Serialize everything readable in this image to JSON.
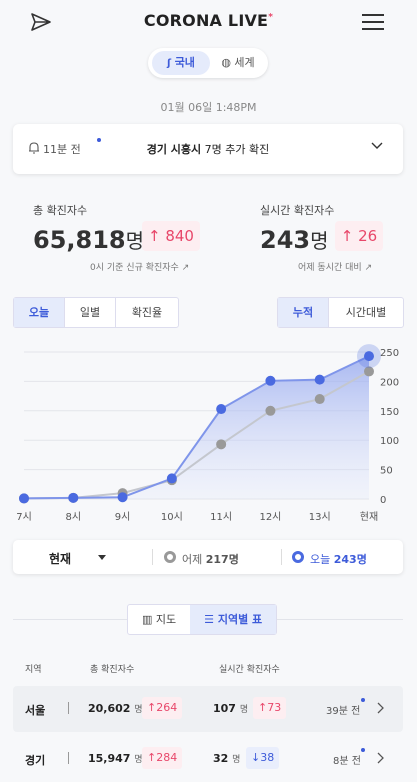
{
  "header": {
    "logo_main": "CORONA",
    "logo_live": "LIVE",
    "logo_star": "*"
  },
  "segment": {
    "domestic": "국내",
    "world": "세계"
  },
  "date": "01월 06일 1:48PM",
  "alert": {
    "ago": "11분 전",
    "region": "경기 시흥시",
    "count": "7명",
    "suffix": "추가 확진"
  },
  "stats": {
    "total_label": "총 확진자수",
    "total_value": "65,818",
    "total_unit": "명",
    "total_delta": "840",
    "total_note": "0시 기준 신규 확진자수",
    "live_label": "실시간 확진자수",
    "live_value": "243",
    "live_unit": "명",
    "live_delta": "26",
    "live_note": "어제 동시간 대비"
  },
  "tabs_left": [
    "오늘",
    "일별",
    "확진율"
  ],
  "tabs_right": [
    "누적",
    "시간대별"
  ],
  "chart_data": {
    "type": "line",
    "categories": [
      "7시",
      "8시",
      "9시",
      "10시",
      "11시",
      "12시",
      "13시",
      "현재"
    ],
    "series": [
      {
        "name": "오늘",
        "color": "#4a6ae0",
        "values": [
          1,
          2,
          3,
          35,
          153,
          201,
          203,
          243
        ]
      },
      {
        "name": "어제",
        "color": "#999999",
        "values": [
          1,
          2,
          10,
          32,
          93,
          150,
          170,
          217
        ]
      }
    ],
    "yticks": [
      "0",
      "50",
      "100",
      "150",
      "200",
      "250"
    ],
    "ylim": [
      0,
      250
    ]
  },
  "legend": {
    "select": "현재",
    "yesterday_label": "어제",
    "yesterday_value": "217명",
    "today_label": "오늘",
    "today_value": "243명"
  },
  "view": {
    "map": "지도",
    "table": "지역별 표"
  },
  "table": {
    "headers": [
      "지역",
      "총 확진자수",
      "실시간 확진자수"
    ],
    "rows": [
      {
        "city": "서울",
        "total": "20,602",
        "unit": "명",
        "total_delta": "264",
        "live": "107",
        "live_unit": "명",
        "live_delta": "73",
        "live_dir": "up",
        "ago": "39분 전"
      },
      {
        "city": "경기",
        "total": "15,947",
        "unit": "명",
        "total_delta": "284",
        "live": "32",
        "live_unit": "명",
        "live_delta": "38",
        "live_dir": "down",
        "ago": "8분 전"
      }
    ]
  }
}
